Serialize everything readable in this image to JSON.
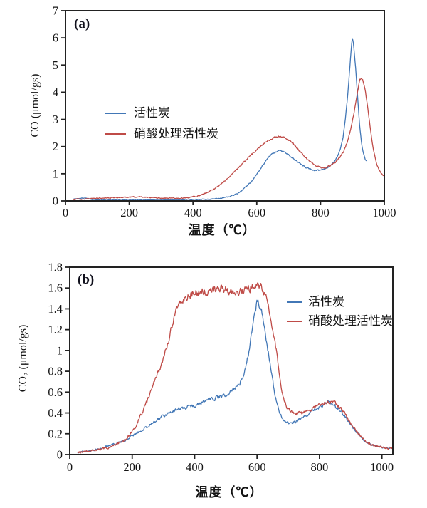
{
  "figure": {
    "background": "#ffffff",
    "axis_color": "#222222",
    "text_color": "#141414"
  },
  "chart_data": [
    {
      "panel_label": "(a)",
      "type": "line",
      "title": "",
      "xlabel": "温度（℃）",
      "ylabel": "CO (μmol/gs)",
      "x_range": [
        0,
        1000
      ],
      "y_range": [
        0,
        7
      ],
      "x_ticks": [
        0,
        200,
        400,
        600,
        800,
        1000
      ],
      "y_ticks": [
        0,
        1,
        2,
        3,
        4,
        5,
        6,
        7
      ],
      "grid": false,
      "legend_position": "inside-left-middle",
      "series": [
        {
          "name": "活性炭",
          "color": "#4277b6",
          "points": [
            [
              25,
              0.07
            ],
            [
              40,
              0.1
            ],
            [
              60,
              0.1
            ],
            [
              80,
              0.07
            ],
            [
              100,
              0.05
            ],
            [
              150,
              0.04
            ],
            [
              200,
              0.04
            ],
            [
              250,
              0.04
            ],
            [
              300,
              0.04
            ],
            [
              350,
              0.04
            ],
            [
              400,
              0.05
            ],
            [
              440,
              0.06
            ],
            [
              470,
              0.08
            ],
            [
              500,
              0.12
            ],
            [
              520,
              0.18
            ],
            [
              540,
              0.28
            ],
            [
              555,
              0.4
            ],
            [
              570,
              0.56
            ],
            [
              582,
              0.7
            ],
            [
              594,
              0.88
            ],
            [
              606,
              1.08
            ],
            [
              618,
              1.3
            ],
            [
              630,
              1.5
            ],
            [
              642,
              1.66
            ],
            [
              654,
              1.77
            ],
            [
              666,
              1.84
            ],
            [
              674,
              1.86
            ],
            [
              686,
              1.81
            ],
            [
              700,
              1.7
            ],
            [
              714,
              1.56
            ],
            [
              728,
              1.43
            ],
            [
              742,
              1.31
            ],
            [
              756,
              1.22
            ],
            [
              770,
              1.16
            ],
            [
              785,
              1.12
            ],
            [
              800,
              1.13
            ],
            [
              815,
              1.19
            ],
            [
              828,
              1.27
            ],
            [
              840,
              1.4
            ],
            [
              852,
              1.62
            ],
            [
              862,
              1.92
            ],
            [
              870,
              2.3
            ],
            [
              877,
              2.9
            ],
            [
              883,
              3.6
            ],
            [
              888,
              4.3
            ],
            [
              893,
              5.1
            ],
            [
              897,
              5.7
            ],
            [
              900,
              5.98
            ],
            [
              904,
              5.7
            ],
            [
              910,
              4.9
            ],
            [
              916,
              3.9
            ],
            [
              922,
              2.9
            ],
            [
              928,
              2.2
            ],
            [
              934,
              1.75
            ],
            [
              940,
              1.52
            ],
            [
              944,
              1.45
            ]
          ]
        },
        {
          "name": "硝酸处理活性炭",
          "color": "#bf4b47",
          "points": [
            [
              25,
              0.06
            ],
            [
              50,
              0.07
            ],
            [
              80,
              0.08
            ],
            [
              110,
              0.1
            ],
            [
              140,
              0.11
            ],
            [
              170,
              0.13
            ],
            [
              200,
              0.14
            ],
            [
              230,
              0.15
            ],
            [
              260,
              0.13
            ],
            [
              290,
              0.11
            ],
            [
              320,
              0.1
            ],
            [
              350,
              0.1
            ],
            [
              380,
              0.12
            ],
            [
              410,
              0.17
            ],
            [
              435,
              0.26
            ],
            [
              460,
              0.4
            ],
            [
              480,
              0.55
            ],
            [
              500,
              0.73
            ],
            [
              520,
              0.94
            ],
            [
              540,
              1.18
            ],
            [
              560,
              1.43
            ],
            [
              580,
              1.66
            ],
            [
              600,
              1.89
            ],
            [
              620,
              2.09
            ],
            [
              638,
              2.23
            ],
            [
              655,
              2.32
            ],
            [
              670,
              2.37
            ],
            [
              682,
              2.35
            ],
            [
              695,
              2.28
            ],
            [
              708,
              2.16
            ],
            [
              722,
              2.0
            ],
            [
              736,
              1.82
            ],
            [
              750,
              1.63
            ],
            [
              764,
              1.47
            ],
            [
              778,
              1.35
            ],
            [
              792,
              1.27
            ],
            [
              806,
              1.22
            ],
            [
              820,
              1.24
            ],
            [
              834,
              1.32
            ],
            [
              848,
              1.44
            ],
            [
              860,
              1.6
            ],
            [
              872,
              1.82
            ],
            [
              883,
              2.15
            ],
            [
              893,
              2.55
            ],
            [
              902,
              3.05
            ],
            [
              910,
              3.6
            ],
            [
              917,
              4.1
            ],
            [
              923,
              4.45
            ],
            [
              928,
              4.55
            ],
            [
              933,
              4.45
            ],
            [
              939,
              4.15
            ],
            [
              946,
              3.6
            ],
            [
              953,
              2.95
            ],
            [
              961,
              2.25
            ],
            [
              969,
              1.7
            ],
            [
              978,
              1.3
            ],
            [
              988,
              1.05
            ],
            [
              996,
              0.95
            ],
            [
              1000,
              0.93
            ]
          ]
        }
      ]
    },
    {
      "panel_label": "(b)",
      "type": "line",
      "title": "",
      "xlabel": "温度（℃）",
      "ylabel": "CO₂ (μmol/gs)",
      "x_range": [
        0,
        1035
      ],
      "y_range": [
        0,
        1.8
      ],
      "x_ticks": [
        0,
        200,
        400,
        600,
        800,
        1000
      ],
      "y_ticks": [
        0,
        0.2,
        0.4,
        0.6,
        0.8,
        1,
        1.2,
        1.4,
        1.6,
        1.8
      ],
      "grid": false,
      "legend_position": "inside-right-top",
      "series": [
        {
          "name": "活性炭",
          "color": "#4277b6",
          "points": [
            [
              25,
              0.02
            ],
            [
              50,
              0.03
            ],
            [
              75,
              0.04
            ],
            [
              100,
              0.06
            ],
            [
              125,
              0.085
            ],
            [
              150,
              0.11
            ],
            [
              175,
              0.13
            ],
            [
              200,
              0.18
            ],
            [
              225,
              0.22
            ],
            [
              250,
              0.27
            ],
            [
              275,
              0.32
            ],
            [
              300,
              0.37
            ],
            [
              325,
              0.41
            ],
            [
              350,
              0.44
            ],
            [
              375,
              0.455
            ],
            [
              400,
              0.47
            ],
            [
              425,
              0.5
            ],
            [
              450,
              0.53
            ],
            [
              475,
              0.55
            ],
            [
              500,
              0.575
            ],
            [
              515,
              0.6
            ],
            [
              530,
              0.635
            ],
            [
              545,
              0.69
            ],
            [
              556,
              0.76
            ],
            [
              566,
              0.87
            ],
            [
              576,
              1.02
            ],
            [
              585,
              1.2
            ],
            [
              593,
              1.35
            ],
            [
              600,
              1.47
            ],
            [
              606,
              1.44
            ],
            [
              612,
              1.39
            ],
            [
              618,
              1.33
            ],
            [
              625,
              1.21
            ],
            [
              632,
              1.06
            ],
            [
              640,
              0.9
            ],
            [
              648,
              0.74
            ],
            [
              656,
              0.6
            ],
            [
              664,
              0.48
            ],
            [
              672,
              0.4
            ],
            [
              681,
              0.345
            ],
            [
              692,
              0.315
            ],
            [
              705,
              0.3
            ],
            [
              720,
              0.31
            ],
            [
              740,
              0.34
            ],
            [
              760,
              0.38
            ],
            [
              780,
              0.42
            ],
            [
              800,
              0.45
            ],
            [
              815,
              0.47
            ],
            [
              828,
              0.51
            ],
            [
              845,
              0.48
            ],
            [
              860,
              0.44
            ],
            [
              875,
              0.39
            ],
            [
              890,
              0.33
            ],
            [
              905,
              0.27
            ],
            [
              920,
              0.21
            ],
            [
              935,
              0.16
            ],
            [
              950,
              0.12
            ],
            [
              965,
              0.1
            ],
            [
              980,
              0.085
            ],
            [
              1000,
              0.07
            ],
            [
              1015,
              0.066
            ],
            [
              1030,
              0.062
            ]
          ]
        },
        {
          "name": "硝酸处理活性炭",
          "color": "#bf4b47",
          "points": [
            [
              25,
              0.02
            ],
            [
              50,
              0.03
            ],
            [
              75,
              0.04
            ],
            [
              100,
              0.05
            ],
            [
              125,
              0.07
            ],
            [
              150,
              0.1
            ],
            [
              175,
              0.14
            ],
            [
              195,
              0.2
            ],
            [
              210,
              0.27
            ],
            [
              225,
              0.36
            ],
            [
              240,
              0.46
            ],
            [
              255,
              0.56
            ],
            [
              270,
              0.68
            ],
            [
              285,
              0.8
            ],
            [
              300,
              0.92
            ],
            [
              312,
              1.05
            ],
            [
              322,
              1.17
            ],
            [
              332,
              1.29
            ],
            [
              342,
              1.4
            ],
            [
              352,
              1.47
            ],
            [
              365,
              1.51
            ],
            [
              380,
              1.53
            ],
            [
              400,
              1.55
            ],
            [
              420,
              1.56
            ],
            [
              440,
              1.575
            ],
            [
              460,
              1.59
            ],
            [
              480,
              1.6
            ],
            [
              500,
              1.59
            ],
            [
              520,
              1.57
            ],
            [
              540,
              1.56
            ],
            [
              560,
              1.57
            ],
            [
              578,
              1.59
            ],
            [
              592,
              1.61
            ],
            [
              605,
              1.62
            ],
            [
              615,
              1.6
            ],
            [
              624,
              1.56
            ],
            [
              632,
              1.48
            ],
            [
              640,
              1.36
            ],
            [
              647,
              1.22
            ],
            [
              653,
              1.12
            ],
            [
              659,
              1.04
            ],
            [
              665,
              0.93
            ],
            [
              671,
              0.8
            ],
            [
              677,
              0.67
            ],
            [
              684,
              0.56
            ],
            [
              693,
              0.47
            ],
            [
              703,
              0.43
            ],
            [
              715,
              0.41
            ],
            [
              730,
              0.395
            ],
            [
              745,
              0.4
            ],
            [
              762,
              0.42
            ],
            [
              780,
              0.445
            ],
            [
              798,
              0.47
            ],
            [
              812,
              0.49
            ],
            [
              826,
              0.505
            ],
            [
              840,
              0.51
            ],
            [
              852,
              0.49
            ],
            [
              865,
              0.455
            ],
            [
              878,
              0.41
            ],
            [
              892,
              0.345
            ],
            [
              906,
              0.28
            ],
            [
              920,
              0.22
            ],
            [
              934,
              0.165
            ],
            [
              948,
              0.125
            ],
            [
              962,
              0.1
            ],
            [
              976,
              0.085
            ],
            [
              1000,
              0.07
            ],
            [
              1018,
              0.066
            ],
            [
              1035,
              0.062
            ]
          ]
        }
      ]
    }
  ]
}
